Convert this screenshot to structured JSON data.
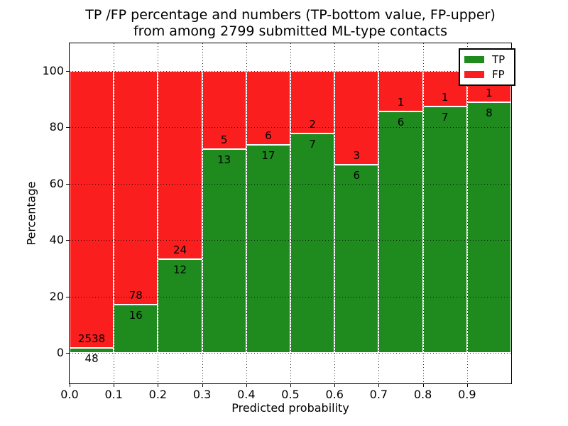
{
  "figure": {
    "title_lines": [
      "TP /FP percentage and numbers (TP-bottom value, FP-upper)",
      "from among 2799 submitted ML-type contacts"
    ]
  },
  "chart_data": {
    "type": "bar",
    "stacked": true,
    "orientation": "vertical",
    "title": "TP /FP percentage and numbers (TP-bottom value, FP-upper) from among 2799 submitted ML-type contacts",
    "xlabel": "Predicted probability",
    "ylabel": "Percentage",
    "x_tick_labels": [
      "0.0",
      "0.1",
      "0.2",
      "0.3",
      "0.4",
      "0.5",
      "0.6",
      "0.7",
      "0.8",
      "0.9"
    ],
    "y_tick_values": [
      0,
      20,
      40,
      60,
      80,
      100
    ],
    "xlim": [
      0.0,
      1.0
    ],
    "ylim": [
      -11,
      110
    ],
    "grid": "dotted",
    "bar_height_mode": "percent_of_bin_total",
    "bins": [
      "0.0-0.1",
      "0.1-0.2",
      "0.2-0.3",
      "0.3-0.4",
      "0.4-0.5",
      "0.5-0.6",
      "0.6-0.7",
      "0.7-0.8",
      "0.8-0.9",
      "0.9-1.0"
    ],
    "series": [
      {
        "name": "TP",
        "color": "#1f8b1f",
        "counts": [
          48,
          16,
          12,
          13,
          17,
          7,
          6,
          6,
          7,
          8
        ]
      },
      {
        "name": "FP",
        "color": "#fa1e1e",
        "counts": [
          2538,
          78,
          24,
          5,
          6,
          2,
          3,
          1,
          1,
          1
        ]
      }
    ],
    "tp_percent_of_bin": [
      1.9,
      17.0,
      33.3,
      72.2,
      73.9,
      77.8,
      66.7,
      85.7,
      87.5,
      88.9
    ],
    "total_contacts": 2799,
    "legend": {
      "position": "upper right",
      "entries": [
        {
          "label": "TP",
          "color": "#1f8b1f"
        },
        {
          "label": "FP",
          "color": "#fa1e1e"
        }
      ]
    }
  }
}
